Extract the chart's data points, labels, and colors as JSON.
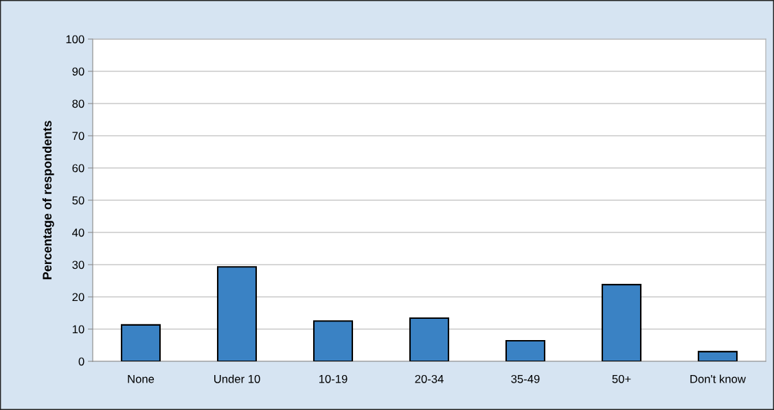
{
  "chart_data": {
    "type": "bar",
    "ylabel": "Percentage of respondents",
    "categories": [
      "None",
      "Under 10",
      "10-19",
      "20-34",
      "35-49",
      "50+",
      "Don't know"
    ],
    "values": [
      11.3,
      29.3,
      12.5,
      13.4,
      6.4,
      23.8,
      3.0
    ],
    "color": "#3a82c4",
    "ylim": [
      0,
      100
    ],
    "yticks": [
      0,
      10,
      20,
      30,
      40,
      50,
      60,
      70,
      80,
      90,
      100
    ],
    "grid": "y"
  }
}
